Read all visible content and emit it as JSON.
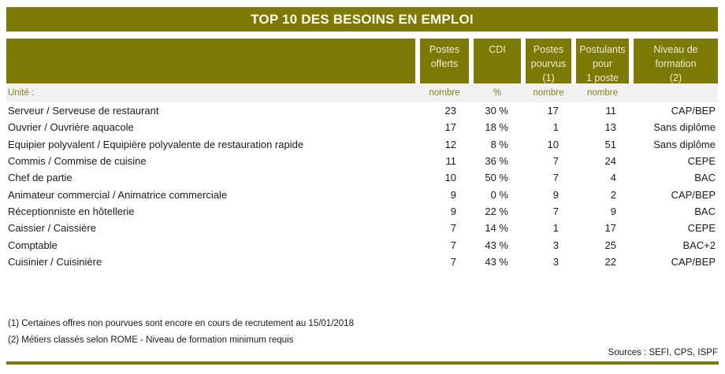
{
  "title": "TOP 10 DES BESOINS EN EMPLOI",
  "colors": {
    "accent": "#7C7A04",
    "title_text": "#FBFAF2",
    "header_text": "#EFE9D9",
    "unit_text": "#868114",
    "unit_bg": "#F1F1F1",
    "text": "#1A1A1A"
  },
  "table": {
    "unit_label": "Unité :",
    "columns": [
      "Postes\nofferts",
      "CDI",
      "Postes\npourvus\n(1)",
      "Postulants\npour\n1 poste",
      "Niveau de\nformation\n(2)"
    ],
    "units": [
      "nombre",
      "%",
      "nombre",
      "nombre",
      ""
    ],
    "rows": [
      [
        "Serveur / Serveuse de restaurant",
        "23",
        "30 %",
        "17",
        "11",
        "CAP/BEP"
      ],
      [
        "Ouvrier / Ouvrière aquacole",
        "17",
        "18 %",
        "1",
        "13",
        "Sans diplôme"
      ],
      [
        "Equipier polyvalent / Equipière polyvalente de restauration rapide",
        "12",
        "8 %",
        "10",
        "51",
        "Sans diplôme"
      ],
      [
        "Commis / Commise de cuisine",
        "11",
        "36 %",
        "7",
        "24",
        "CEPE"
      ],
      [
        "Chef de partie",
        "10",
        "50 %",
        "7",
        "4",
        "BAC"
      ],
      [
        "Animateur commercial / Animatrice commerciale",
        "9",
        "0 %",
        "9",
        "2",
        "CAP/BEP"
      ],
      [
        "Réceptionniste en hôtellerie",
        "9",
        "22 %",
        "7",
        "9",
        "BAC"
      ],
      [
        "Caissier / Caissière",
        "7",
        "14 %",
        "1",
        "17",
        "CEPE"
      ],
      [
        "Comptable",
        "7",
        "43 %",
        "3",
        "25",
        "BAC+2"
      ],
      [
        "Cuisinier / Cuisinière",
        "7",
        "43 %",
        "3",
        "22",
        "CAP/BEP"
      ]
    ]
  },
  "footnotes": [
    "(1) Certaines offres non pourvues sont encore en cours de recrutement au 15/01/2018",
    "(2) Métiers classés selon ROME - Niveau de formation minimum requis"
  ],
  "sources": "Sources : SEFI, CPS, ISPF"
}
